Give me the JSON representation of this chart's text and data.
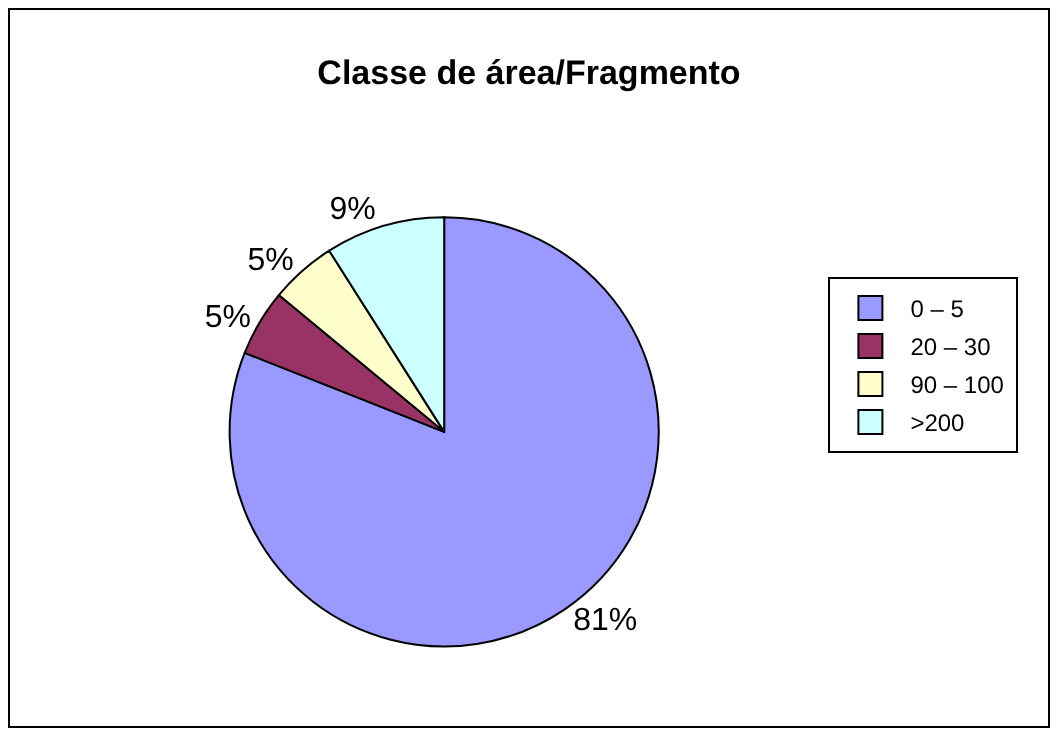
{
  "chart_data": {
    "type": "pie",
    "title": "Classe de área/Fragmento",
    "categories": [
      "0 – 5",
      "20 – 30",
      "90 – 100",
      ">200"
    ],
    "values": [
      81,
      5,
      5,
      9
    ],
    "colors": [
      "#9999ff",
      "#993366",
      "#ffffcc",
      "#ccffff"
    ],
    "value_labels": [
      "81%",
      "5%",
      "5%",
      "9%"
    ],
    "legend": "right"
  }
}
